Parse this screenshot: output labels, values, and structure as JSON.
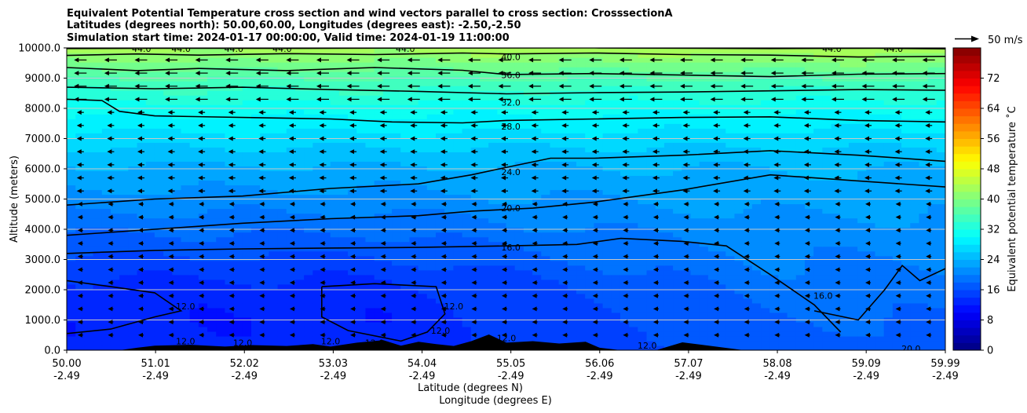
{
  "chart_data": {
    "type": "heatmap",
    "title_lines": [
      "Equivalent Potential Temperature cross section and wind vectors parallel to cross section: CrosssectionA",
      "Latitudes (degrees north): 50.00,60.00, Longitudes (degrees east): -2.50,-2.50",
      "Simulation start time: 2024-01-17 00:00:00, Valid time: 2024-01-19 11:00:00"
    ],
    "xlabel_lat": "Latitude (degrees N)",
    "xlabel_lon": "Longitude (degrees E)",
    "ylabel": "Altitude (meters)",
    "xlim": [
      50.0,
      59.99
    ],
    "ylim": [
      0,
      10000
    ],
    "x_tick_lat": [
      "50.00",
      "51.01",
      "52.02",
      "53.03",
      "54.04",
      "55.05",
      "56.06",
      "57.07",
      "58.08",
      "59.09",
      "59.99"
    ],
    "x_tick_lon": [
      "-2.49",
      "-2.49",
      "-2.49",
      "-2.49",
      "-2.49",
      "-2.49",
      "-2.49",
      "-2.49",
      "-2.49",
      "-2.49",
      "-2.49"
    ],
    "y_ticks": [
      0,
      1000,
      2000,
      3000,
      4000,
      5000,
      6000,
      7000,
      8000,
      9000,
      10000
    ],
    "y_tick_labels": [
      "0.0",
      "1000.0",
      "2000.0",
      "3000.0",
      "4000.0",
      "5000.0",
      "6000.0",
      "7000.0",
      "8000.0",
      "9000.0",
      "10000.0"
    ],
    "grid": true,
    "colorbar": {
      "label": "Equivalent potential temperature ˚C",
      "range": [
        0,
        80
      ],
      "ticks": [
        0,
        8,
        16,
        24,
        32,
        40,
        48,
        56,
        64,
        72
      ],
      "tick_labels": [
        "0",
        "8",
        "16",
        "24",
        "32",
        "40",
        "48",
        "56",
        "64",
        "72"
      ],
      "colormap": "jet",
      "levels": 40
    },
    "field_profile": {
      "altitudes": [
        0,
        500,
        1000,
        1500,
        2000,
        2500,
        3000,
        3500,
        4000,
        4500,
        5000,
        5500,
        6000,
        6500,
        7000,
        7500,
        8000,
        8500,
        9000,
        9500,
        10000
      ],
      "theta_e_west": [
        13,
        12.5,
        12.3,
        12.6,
        13.2,
        14.3,
        15.6,
        17.0,
        18.4,
        19.8,
        21.2,
        22.4,
        23.6,
        25.2,
        27.1,
        29.0,
        31.0,
        33.5,
        36.0,
        39.5,
        43.0
      ],
      "theta_e_east": [
        17,
        17.5,
        18.0,
        18.5,
        19.0,
        19.5,
        20.0,
        20.6,
        21.3,
        22.0,
        22.7,
        23.3,
        24.0,
        25.3,
        27.0,
        28.8,
        30.6,
        33.2,
        36.2,
        39.8,
        43.5
      ]
    },
    "contours": [
      {
        "level": "44.0",
        "points": [
          [
            50.0,
            9980
          ],
          [
            51.0,
            9990
          ],
          [
            52.5,
            9985
          ],
          [
            54.0,
            9995
          ],
          [
            56.0,
            10000
          ],
          [
            58.0,
            9980
          ],
          [
            59.2,
            9990
          ],
          [
            59.99,
            9970
          ]
        ]
      },
      {
        "level": "40.0",
        "points": [
          [
            50.0,
            9750
          ],
          [
            50.8,
            9800
          ],
          [
            51.5,
            9760
          ],
          [
            52.5,
            9810
          ],
          [
            53.5,
            9780
          ],
          [
            54.5,
            9830
          ],
          [
            55.0,
            9800
          ],
          [
            56.0,
            9830
          ],
          [
            57.0,
            9780
          ],
          [
            58.0,
            9760
          ],
          [
            59.0,
            9700
          ],
          [
            59.99,
            9720
          ]
        ]
      },
      {
        "level": "36.0",
        "points": [
          [
            50.0,
            9350
          ],
          [
            50.8,
            9250
          ],
          [
            51.5,
            9320
          ],
          [
            52.5,
            9250
          ],
          [
            53.5,
            9350
          ],
          [
            54.5,
            9260
          ],
          [
            55.0,
            9120
          ],
          [
            56.0,
            9150
          ],
          [
            57.0,
            9100
          ],
          [
            58.0,
            9050
          ],
          [
            59.0,
            9130
          ],
          [
            59.99,
            9150
          ]
        ]
      },
      {
        "level": "32.0",
        "points": [
          [
            50.0,
            8700
          ],
          [
            51.0,
            8650
          ],
          [
            52.0,
            8700
          ],
          [
            53.0,
            8620
          ],
          [
            54.0,
            8560
          ],
          [
            55.0,
            8480
          ],
          [
            56.0,
            8520
          ],
          [
            57.0,
            8540
          ],
          [
            58.0,
            8580
          ],
          [
            59.0,
            8620
          ],
          [
            59.99,
            8600
          ]
        ]
      },
      {
        "level": "28.0",
        "points": [
          [
            50.0,
            8300
          ],
          [
            50.4,
            8260
          ],
          [
            50.6,
            7900
          ],
          [
            51.0,
            7750
          ],
          [
            52.0,
            7700
          ],
          [
            53.0,
            7650
          ],
          [
            53.7,
            7550
          ],
          [
            54.5,
            7520
          ],
          [
            55.0,
            7600
          ],
          [
            56.0,
            7650
          ],
          [
            57.0,
            7700
          ],
          [
            58.0,
            7720
          ],
          [
            59.0,
            7600
          ],
          [
            59.99,
            7550
          ]
        ]
      },
      {
        "level": "24.0",
        "points": [
          [
            50.0,
            4800
          ],
          [
            51.0,
            5000
          ],
          [
            52.0,
            5100
          ],
          [
            53.0,
            5350
          ],
          [
            54.0,
            5500
          ],
          [
            54.6,
            5800
          ],
          [
            55.0,
            6050
          ],
          [
            55.5,
            6350
          ],
          [
            56.0,
            6350
          ],
          [
            57.0,
            6450
          ],
          [
            58.0,
            6600
          ],
          [
            59.0,
            6450
          ],
          [
            59.99,
            6250
          ]
        ]
      },
      {
        "level": "20.0",
        "points": [
          [
            50.0,
            3800
          ],
          [
            51.0,
            4000
          ],
          [
            52.0,
            4200
          ],
          [
            53.0,
            4350
          ],
          [
            54.0,
            4450
          ],
          [
            54.6,
            4600
          ],
          [
            55.3,
            4700
          ],
          [
            56.0,
            4900
          ],
          [
            57.0,
            5300
          ],
          [
            58.0,
            5800
          ],
          [
            59.0,
            5600
          ],
          [
            59.99,
            5400
          ]
        ]
      },
      {
        "level": "16.0",
        "points": [
          [
            50.0,
            3200
          ],
          [
            51.0,
            3300
          ],
          [
            52.0,
            3350
          ],
          [
            53.0,
            3380
          ],
          [
            54.0,
            3400
          ],
          [
            55.0,
            3450
          ],
          [
            55.8,
            3500
          ],
          [
            56.3,
            3700
          ],
          [
            57.0,
            3600
          ],
          [
            57.5,
            3450
          ],
          [
            58.0,
            2500
          ],
          [
            58.5,
            1500
          ],
          [
            58.8,
            600
          ]
        ]
      },
      {
        "level": "16.0",
        "points": [
          [
            58.5,
            1300
          ],
          [
            59.0,
            1000
          ],
          [
            59.3,
            2000
          ],
          [
            59.5,
            2800
          ],
          [
            59.7,
            2300
          ],
          [
            59.99,
            2700
          ]
        ]
      },
      {
        "level": "12.0",
        "points": [
          [
            50.0,
            2300
          ],
          [
            50.5,
            2100
          ],
          [
            51.0,
            1900
          ],
          [
            51.3,
            1300
          ],
          [
            51.0,
            1100
          ],
          [
            50.5,
            700
          ],
          [
            50.0,
            550
          ]
        ]
      },
      {
        "level": "12.0",
        "points": [
          [
            52.9,
            2100
          ],
          [
            53.5,
            2200
          ],
          [
            54.2,
            2100
          ],
          [
            54.3,
            1200
          ],
          [
            54.1,
            600
          ],
          [
            53.8,
            300
          ],
          [
            53.2,
            650
          ],
          [
            52.9,
            1100
          ],
          [
            52.9,
            2100
          ]
        ]
      }
    ],
    "contour_labels": [
      {
        "text": "40.0",
        "x": 55.05,
        "y": 9700
      },
      {
        "text": "36.0",
        "x": 55.05,
        "y": 9100
      },
      {
        "text": "32.0",
        "x": 55.05,
        "y": 8200
      },
      {
        "text": "28.0",
        "x": 55.05,
        "y": 7400
      },
      {
        "text": "24.0",
        "x": 55.05,
        "y": 5900
      },
      {
        "text": "20.0",
        "x": 55.05,
        "y": 4700
      },
      {
        "text": "16.0",
        "x": 55.05,
        "y": 3400
      },
      {
        "text": "12.0",
        "x": 51.35,
        "y": 1450
      },
      {
        "text": "12.0",
        "x": 54.4,
        "y": 1450
      },
      {
        "text": "12.0",
        "x": 54.25,
        "y": 650
      },
      {
        "text": "12.0",
        "x": 55.0,
        "y": 400
      },
      {
        "text": "12.0",
        "x": 56.6,
        "y": 150
      },
      {
        "text": "12.0",
        "x": 51.35,
        "y": 300
      },
      {
        "text": "12.0",
        "x": 52.0,
        "y": 250
      },
      {
        "text": "12.0",
        "x": 53.0,
        "y": 300
      },
      {
        "text": "12.0",
        "x": 53.5,
        "y": 250
      },
      {
        "text": "16.0",
        "x": 58.6,
        "y": 1800
      },
      {
        "text": "20.0",
        "x": 59.6,
        "y": 50
      },
      {
        "text": "44.0",
        "x": 50.85,
        "y": 9980
      },
      {
        "text": "44.0",
        "x": 51.3,
        "y": 9980
      },
      {
        "text": "44.0",
        "x": 51.9,
        "y": 9980
      },
      {
        "text": "44.0",
        "x": 52.45,
        "y": 9980
      },
      {
        "text": "44.0",
        "x": 53.85,
        "y": 9980
      },
      {
        "text": "44.0",
        "x": 58.7,
        "y": 9980
      },
      {
        "text": "44.0",
        "x": 59.4,
        "y": 9980
      }
    ],
    "terrain": {
      "x": [
        50.0,
        50.6,
        50.8,
        51.0,
        51.4,
        51.8,
        52.1,
        52.5,
        52.8,
        53.0,
        53.3,
        53.6,
        53.8,
        54.0,
        54.2,
        54.4,
        54.6,
        54.8,
        55.0,
        55.3,
        55.6,
        55.9,
        56.06,
        56.3,
        56.7,
        57.0,
        57.3,
        57.7,
        58.0,
        58.5,
        59.0,
        59.5,
        59.99
      ],
      "height": [
        0,
        0,
        80,
        150,
        180,
        120,
        170,
        140,
        200,
        120,
        250,
        330,
        150,
        280,
        200,
        140,
        300,
        520,
        250,
        300,
        220,
        280,
        80,
        0,
        0,
        260,
        150,
        0,
        0,
        0,
        0,
        0,
        0
      ]
    },
    "wind_vectors": {
      "description": "Horizontal wind component along section, predominantly easterly (pointing west)",
      "reference_arrow": {
        "label": "50 m/s",
        "speed": 50
      }
    }
  }
}
